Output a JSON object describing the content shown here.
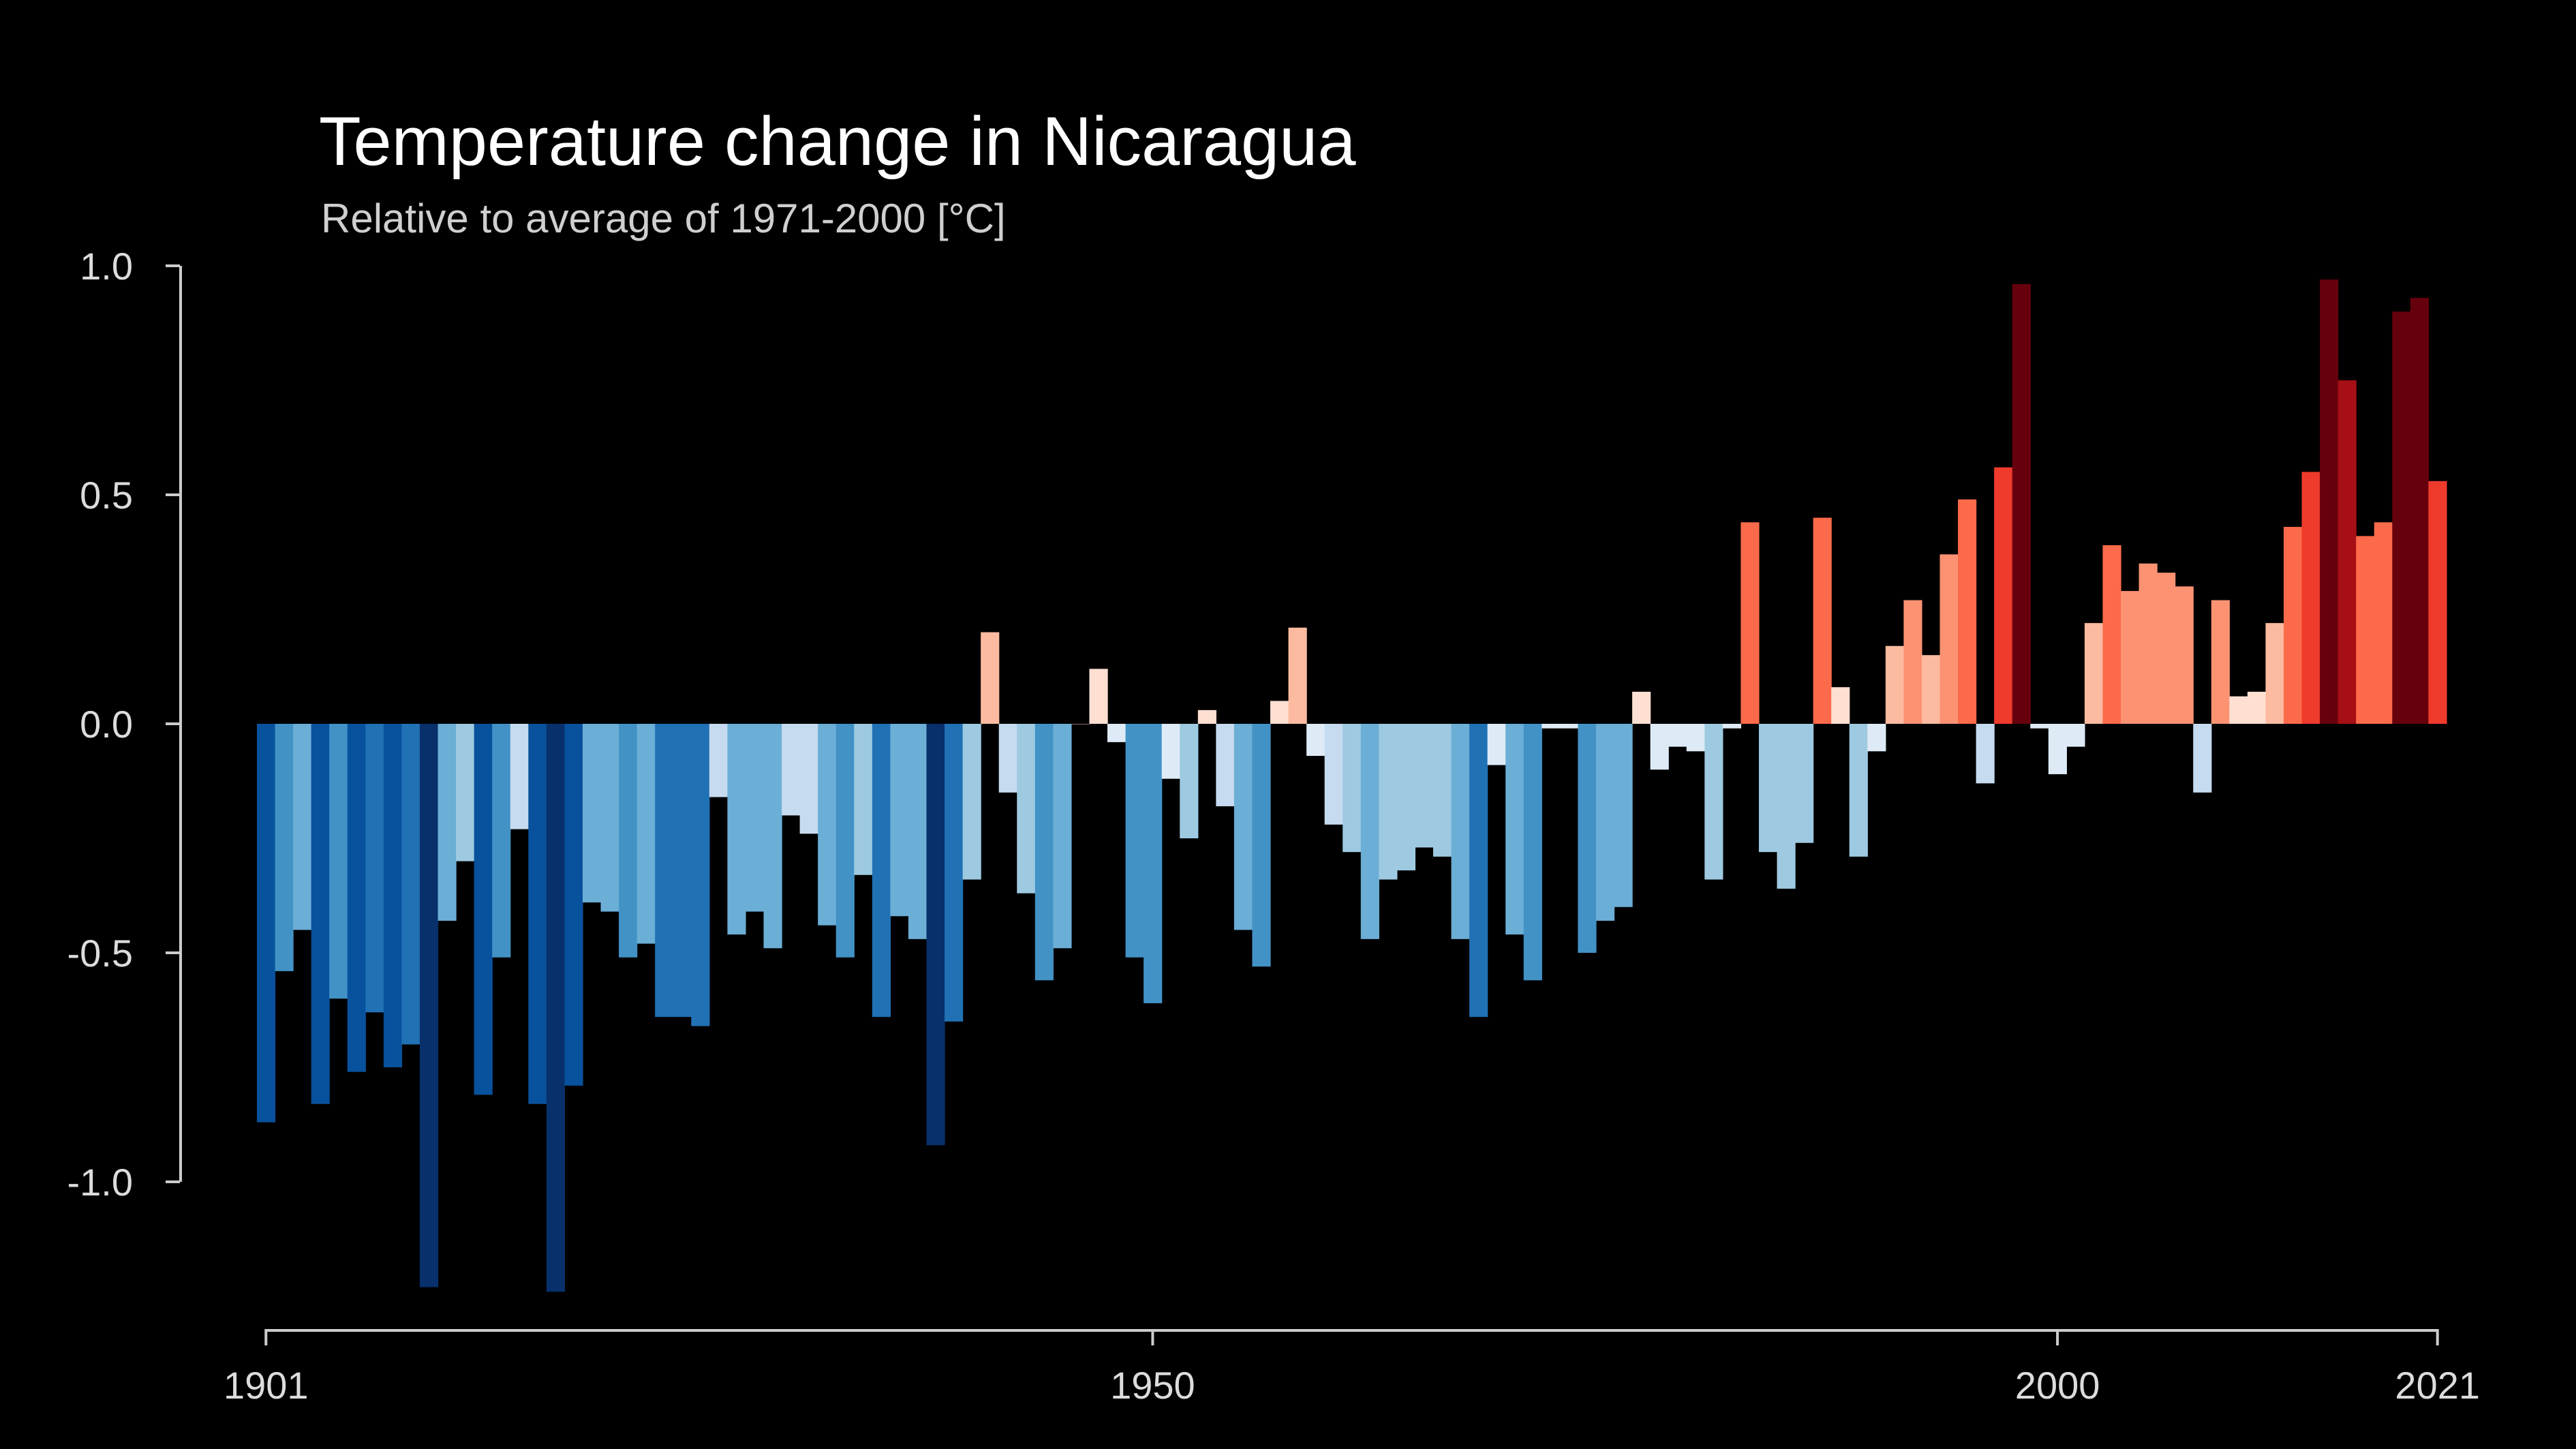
{
  "chart_data": {
    "type": "bar",
    "title": "Temperature change in Nicaragua",
    "subtitle": "Relative to average of 1971-2000  [°C]",
    "xlabel": "",
    "ylabel": "",
    "x_range": [
      1901,
      2021
    ],
    "ylim": [
      -1.2,
      1.1
    ],
    "y_ticks": [
      1.0,
      0.5,
      0.0,
      -0.5,
      -1.0
    ],
    "y_tick_labels": [
      "1.0",
      "0.5",
      "0.0",
      "-0.5",
      "-1.0"
    ],
    "x_ticks": [
      1901,
      1950,
      2000,
      2021
    ],
    "x_tick_labels": [
      "1901",
      "1950",
      "2000",
      "2021"
    ],
    "grid": false,
    "legend": "none",
    "color_scale": {
      "cold": [
        "#08306b",
        "#08519c",
        "#2171b5",
        "#4292c6",
        "#6baed6",
        "#9ecae1",
        "#c6dbef",
        "#deebf7"
      ],
      "warm": [
        "#fee0d2",
        "#fcbba1",
        "#fc9272",
        "#fb6a4a",
        "#ef3b2c",
        "#cb181d",
        "#a50f15",
        "#67000d"
      ]
    },
    "years": [
      1901,
      1902,
      1903,
      1904,
      1905,
      1906,
      1907,
      1908,
      1909,
      1910,
      1911,
      1912,
      1913,
      1914,
      1915,
      1916,
      1917,
      1918,
      1919,
      1920,
      1921,
      1922,
      1923,
      1924,
      1925,
      1926,
      1927,
      1928,
      1929,
      1930,
      1931,
      1932,
      1933,
      1934,
      1935,
      1936,
      1937,
      1938,
      1939,
      1940,
      1941,
      1942,
      1943,
      1944,
      1945,
      1946,
      1947,
      1948,
      1949,
      1950,
      1951,
      1952,
      1953,
      1954,
      1955,
      1956,
      1957,
      1958,
      1959,
      1960,
      1961,
      1962,
      1963,
      1964,
      1965,
      1966,
      1967,
      1968,
      1969,
      1970,
      1971,
      1972,
      1973,
      1974,
      1975,
      1976,
      1977,
      1978,
      1979,
      1980,
      1981,
      1982,
      1983,
      1984,
      1985,
      1986,
      1987,
      1988,
      1989,
      1990,
      1991,
      1992,
      1993,
      1994,
      1995,
      1996,
      1997,
      1998,
      1999,
      2000,
      2001,
      2002,
      2003,
      2004,
      2005,
      2006,
      2007,
      2008,
      2009,
      2010,
      2011,
      2012,
      2013,
      2014,
      2015,
      2016,
      2017,
      2018,
      2019,
      2020,
      2021
    ],
    "values": [
      -0.87,
      -0.54,
      -0.45,
      -0.83,
      -0.6,
      -0.76,
      -0.63,
      -0.75,
      -0.7,
      -1.23,
      -0.43,
      -0.3,
      -0.81,
      -0.51,
      -0.23,
      -0.83,
      -1.24,
      -0.79,
      -0.39,
      -0.41,
      -0.51,
      -0.48,
      -0.64,
      -0.64,
      -0.66,
      -0.16,
      -0.46,
      -0.41,
      -0.49,
      -0.2,
      -0.24,
      -0.44,
      -0.51,
      -0.33,
      -0.64,
      -0.42,
      -0.47,
      -0.92,
      -0.65,
      -0.34,
      0.2,
      -0.15,
      -0.37,
      -0.56,
      -0.49,
      0.0,
      0.12,
      -0.04,
      -0.51,
      -0.61,
      -0.12,
      -0.25,
      0.03,
      -0.18,
      -0.45,
      -0.53,
      0.05,
      0.21,
      -0.07,
      -0.22,
      -0.28,
      -0.47,
      -0.34,
      -0.32,
      -0.27,
      -0.29,
      -0.47,
      -0.64,
      -0.09,
      -0.46,
      -0.56,
      -0.01,
      -0.01,
      -0.5,
      -0.43,
      -0.4,
      0.07,
      -0.1,
      -0.05,
      -0.06,
      -0.34,
      -0.01,
      0.44,
      -0.28,
      -0.36,
      -0.26,
      0.45,
      0.08,
      -0.29,
      -0.06,
      0.17,
      0.27,
      0.15,
      0.37,
      0.49,
      -0.13,
      0.56,
      0.96,
      -0.01,
      -0.11,
      -0.05,
      0.22,
      0.39,
      0.29,
      0.35,
      0.33,
      0.3,
      -0.15,
      0.27,
      0.06,
      0.07,
      0.22,
      0.43,
      0.55,
      0.97,
      0.75,
      0.41,
      0.44,
      0.9,
      0.93,
      0.53
    ]
  }
}
